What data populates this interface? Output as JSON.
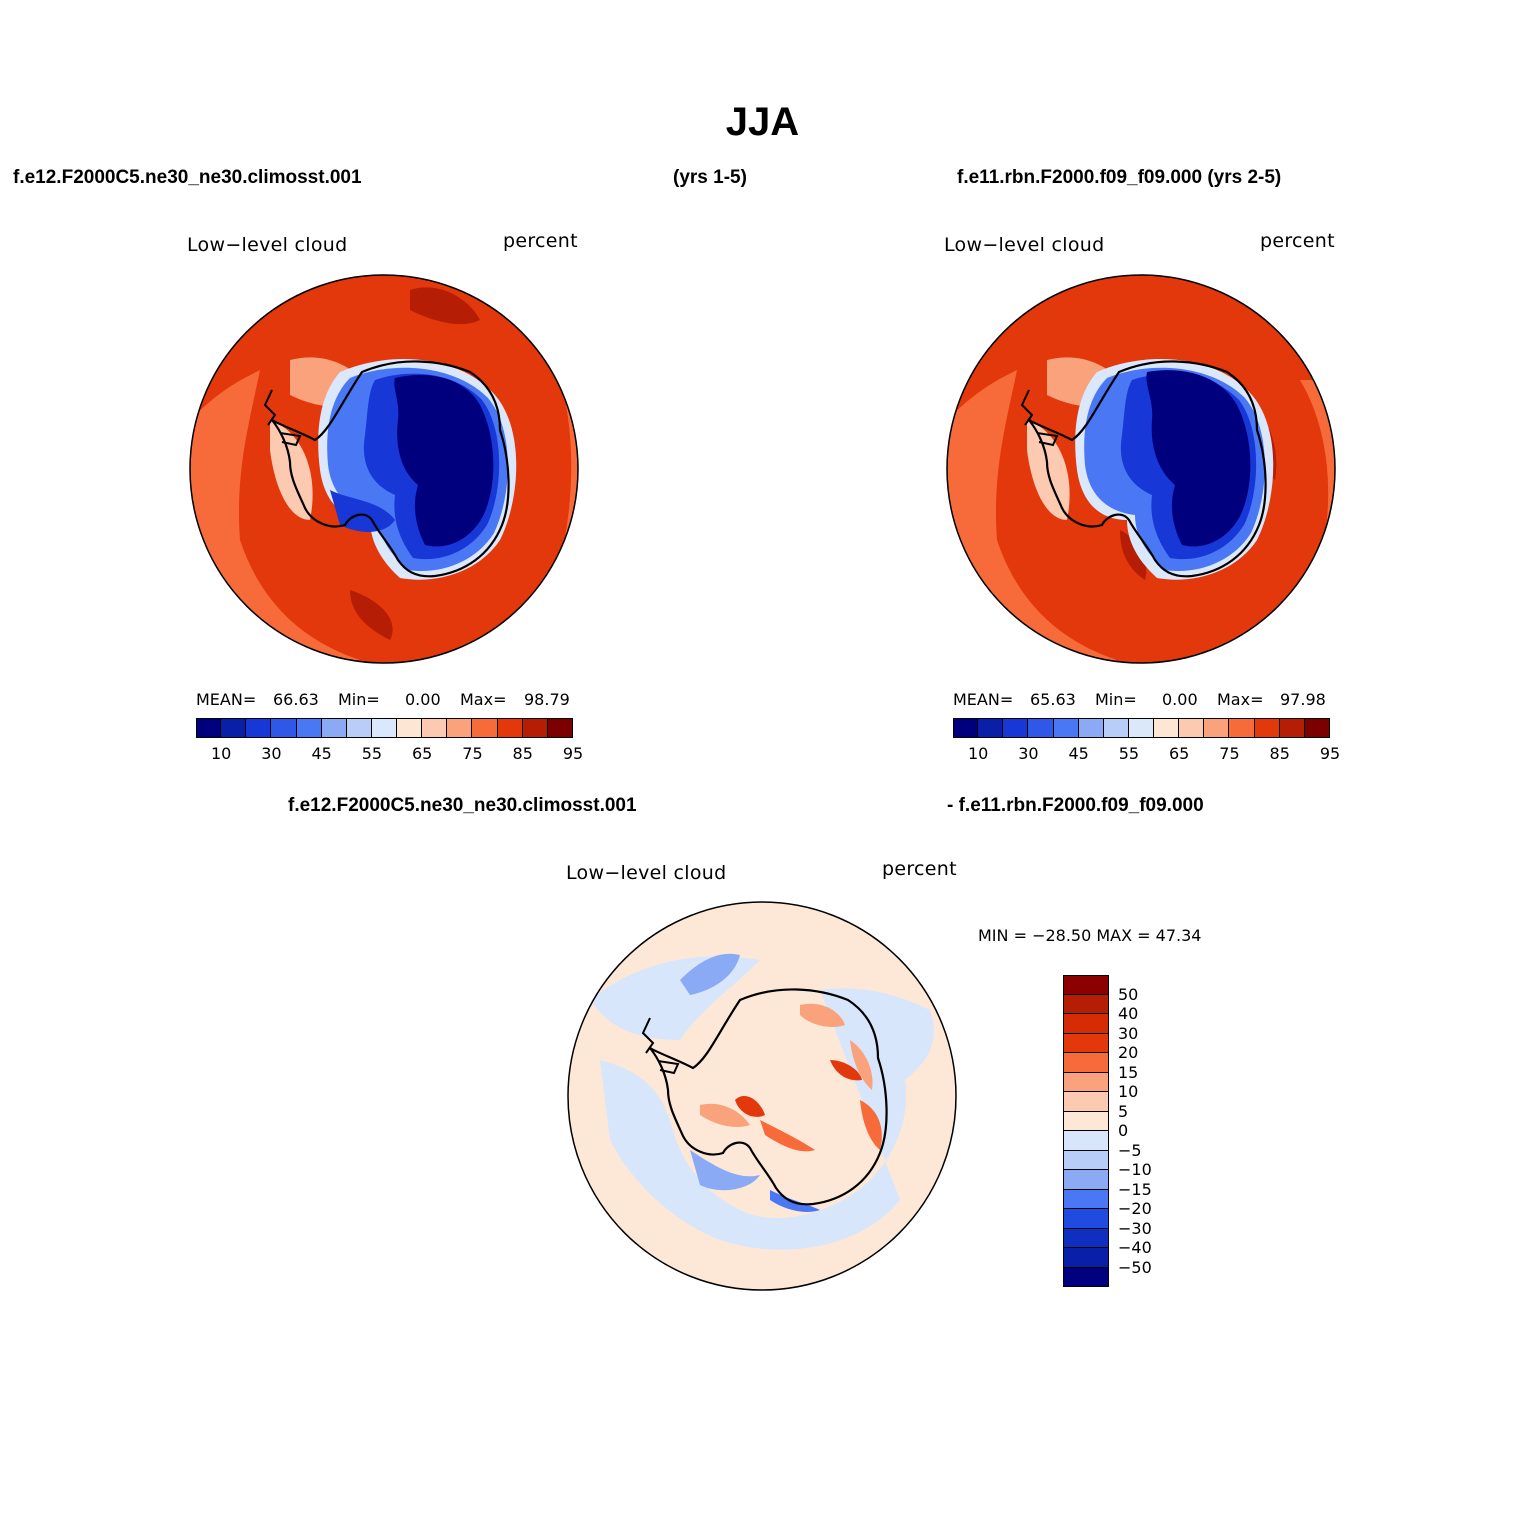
{
  "page": {
    "title": "JJA",
    "case1_label": "f.e12.F2000C5.ne30_ne30.climosst.001",
    "case1_years": "(yrs 1-5)",
    "case2_label": "f.e11.rbn.F2000.f09_f09.000 (yrs 2-5)",
    "diff_label_left": "f.e12.F2000C5.ne30_ne30.climosst.001",
    "diff_label_right": "- f.e11.rbn.F2000.f09_f09.000"
  },
  "panels": [
    {
      "variable": "Low−level cloud",
      "units": "percent",
      "mean_label": "MEAN=",
      "mean": "66.63",
      "min_label": "Min=",
      "min": "0.00",
      "max_label": "Max=",
      "max": "98.79"
    },
    {
      "variable": "Low−level cloud",
      "units": "percent",
      "mean_label": "MEAN=",
      "mean": "65.63",
      "min_label": "Min=",
      "min": "0.00",
      "max_label": "Max=",
      "max": "97.98"
    },
    {
      "variable": "Low−level cloud",
      "units": "percent",
      "minmax": "MIN = −28.50 MAX =   47.34"
    }
  ],
  "colorbar_abs": {
    "ticks": [
      "10",
      "30",
      "45",
      "55",
      "65",
      "75",
      "85",
      "95"
    ],
    "colors": [
      "#00007f",
      "#0a1fa8",
      "#1737d6",
      "#3058e8",
      "#4a78f5",
      "#8aaaf5",
      "#b8cdf7",
      "#dbe8fb",
      "#fde6d3",
      "#fccab1",
      "#f9a27c",
      "#f76a3a",
      "#e2380b",
      "#b51d05",
      "#7c0000"
    ]
  },
  "colorbar_diff": {
    "ticks": [
      "50",
      "40",
      "30",
      "20",
      "15",
      "10",
      "5",
      "0",
      "−5",
      "−10",
      "−15",
      "−20",
      "−30",
      "−40",
      "−50"
    ],
    "colors": [
      "#8b0000",
      "#b51d05",
      "#d62c06",
      "#e2380b",
      "#f76a3a",
      "#f9a27c",
      "#fccab1",
      "#fde8d8",
      "#d7e6fb",
      "#b8cdf7",
      "#8aaaf5",
      "#4a78f5",
      "#1f4be0",
      "#0f2fc0",
      "#0a1fa8",
      "#00007f"
    ]
  },
  "map_colors": {
    "ocean_abs": "#e2380b",
    "ocean_abs_light": "#f76a3a",
    "ocean_abs_dark": "#b51d05",
    "ice_dark": "#00007f",
    "ice_mid": "#1737d6",
    "ice_light": "#8aaaf5",
    "diff_bg": "#fde8d8",
    "diff_neg": "#d7e6fb",
    "diff_neg2": "#8aaaf5",
    "diff_pos": "#f76a3a"
  }
}
